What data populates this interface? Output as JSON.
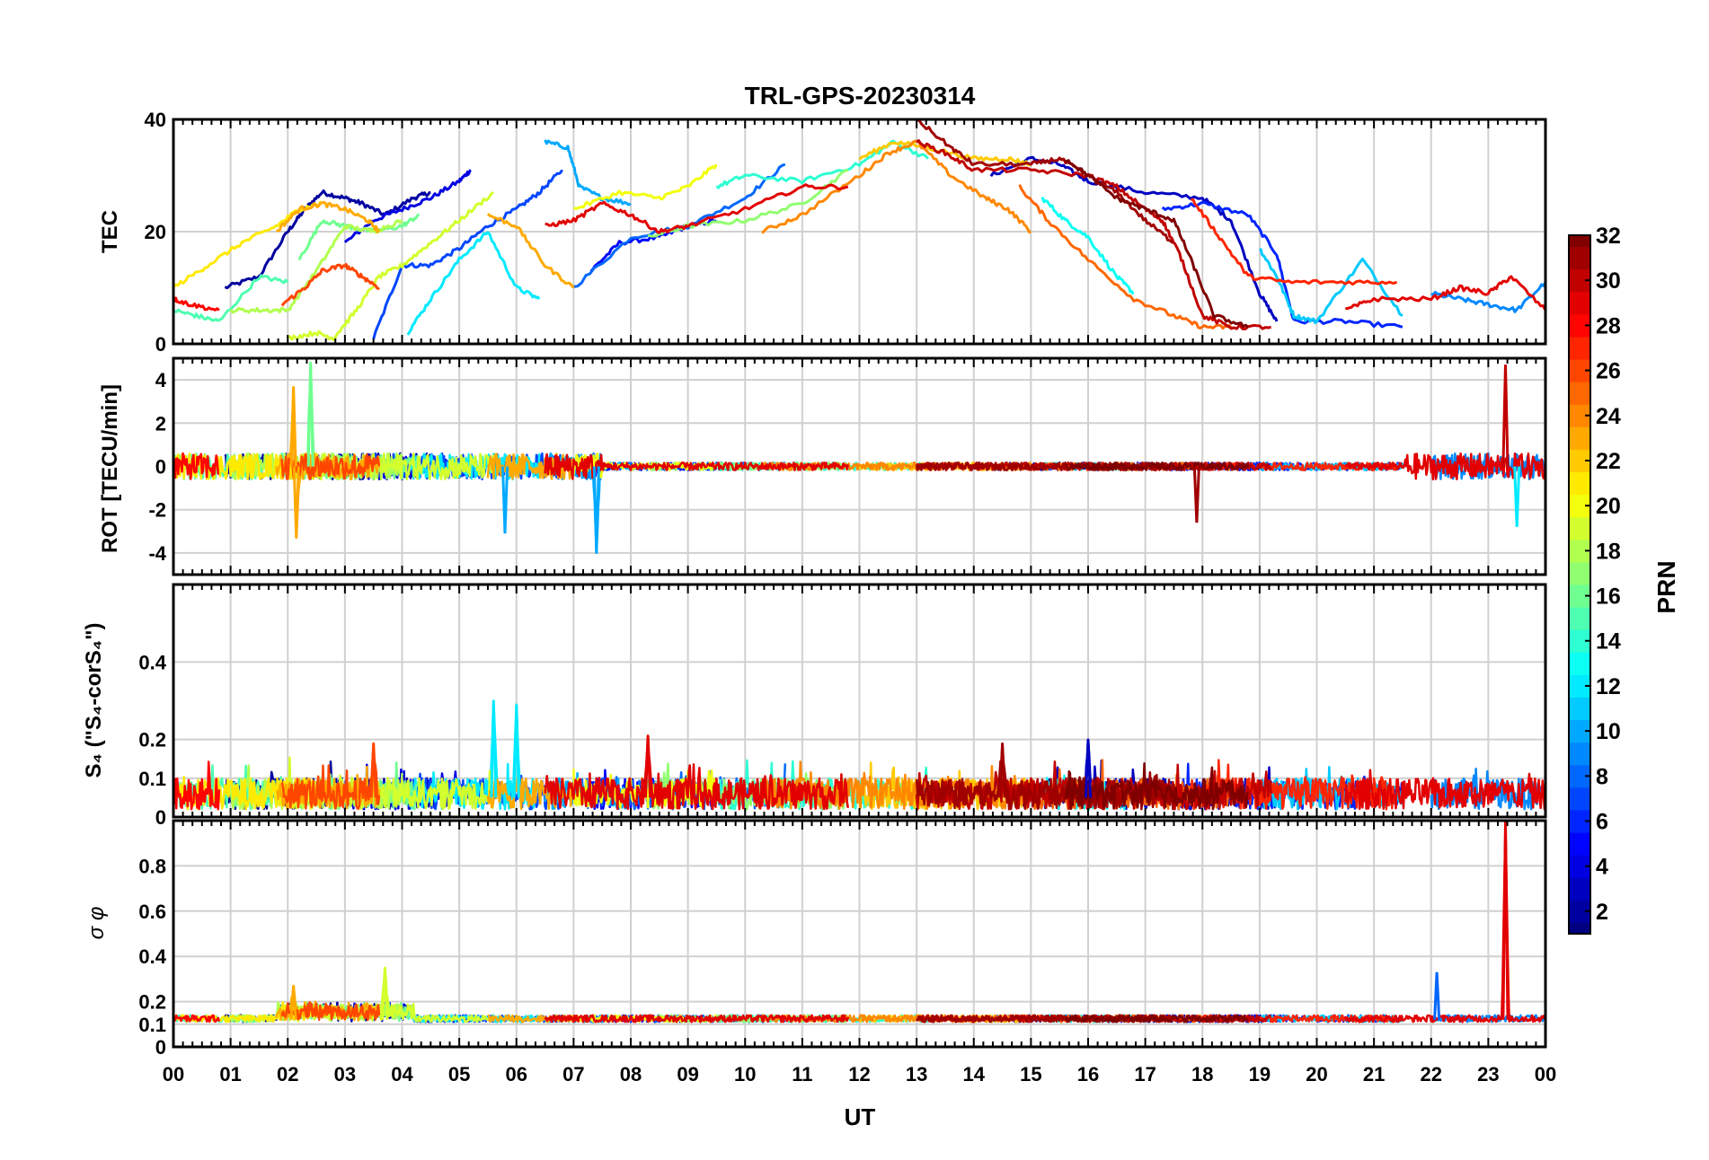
{
  "chart_data": [
    {
      "type": "line",
      "panel": "TEC",
      "title": "TRL-GPS-20230314",
      "ylabel": "TEC",
      "ylim": [
        0,
        40
      ],
      "yticks": [
        0,
        20,
        40
      ],
      "series": [
        {
          "name": "PRN 2",
          "prn": 2,
          "x": [
            0.9,
            1.5,
            2.0,
            2.3,
            2.6,
            3.0,
            3.3,
            3.7,
            4.2,
            4.5
          ],
          "y": [
            10,
            12,
            20,
            24,
            27,
            26,
            25,
            23,
            26,
            27
          ]
        },
        {
          "name": "PRN 4",
          "prn": 4,
          "x": [
            3.0,
            3.5,
            4.0,
            4.5,
            5.0,
            5.2
          ],
          "y": [
            18,
            22,
            24,
            26,
            29,
            31
          ]
        },
        {
          "name": "PRN 5",
          "prn": 5,
          "x": [
            7.3,
            7.8,
            8.5,
            9.0,
            9.5
          ],
          "y": [
            13,
            18,
            19,
            21,
            22
          ]
        },
        {
          "name": "PRN 7",
          "prn": 7,
          "x": [
            3.5,
            4.0,
            4.5,
            5.0,
            5.5,
            6.0,
            6.4,
            6.8
          ],
          "y": [
            1,
            14,
            14,
            17,
            21,
            24,
            27,
            31
          ]
        },
        {
          "name": "PRN 8",
          "prn": 8,
          "x": [
            7.0,
            8.0,
            9.0,
            10.0,
            10.7
          ],
          "y": [
            10,
            19,
            21,
            26,
            32
          ]
        },
        {
          "name": "PRN 3",
          "prn": 3,
          "x": [
            14.3,
            15.0,
            15.5,
            16.0,
            17.0,
            18.0,
            18.5,
            19.0,
            19.3
          ],
          "y": [
            30,
            33,
            32,
            29,
            27,
            26,
            22,
            9,
            4
          ]
        },
        {
          "name": "PRN 6",
          "prn": 6,
          "x": [
            17.3,
            18.0,
            18.8,
            19.3,
            19.6,
            20.5,
            21.5
          ],
          "y": [
            24,
            25,
            23,
            16,
            4,
            4,
            3
          ]
        },
        {
          "name": "PRN 9",
          "prn": 9,
          "x": [
            22.0,
            22.5,
            23.0,
            23.5,
            24.0
          ],
          "y": [
            9,
            8,
            7,
            6,
            11
          ]
        },
        {
          "name": "PRN 10",
          "prn": 10,
          "x": [
            6.5,
            6.9,
            7.1,
            7.5,
            8.0
          ],
          "y": [
            36,
            35,
            28,
            26,
            25
          ]
        },
        {
          "name": "PRN 11",
          "prn": 11,
          "x": [
            19.0,
            19.3,
            19.6,
            20.0,
            20.8,
            21.5
          ],
          "y": [
            17,
            12,
            5,
            4,
            15,
            5
          ]
        },
        {
          "name": "PRN 12",
          "prn": 12,
          "x": [
            4.1,
            4.5,
            5.0,
            5.5,
            6.0,
            6.4
          ],
          "y": [
            2,
            8,
            15,
            20,
            10,
            8
          ]
        },
        {
          "name": "PRN 13",
          "prn": 13,
          "x": [
            15.2,
            15.6,
            16.0,
            16.5,
            16.8
          ],
          "y": [
            26,
            22,
            19,
            12,
            9
          ]
        },
        {
          "name": "PRN 14",
          "prn": 14,
          "x": [
            9.5,
            10.0,
            11.0,
            12.0,
            12.6,
            13.2
          ],
          "y": [
            28,
            30,
            29,
            32,
            36,
            33
          ]
        },
        {
          "name": "PRN 15",
          "prn": 15,
          "x": [
            0.0,
            0.4,
            0.8,
            1.5,
            2.0
          ],
          "y": [
            6,
            5,
            4,
            12,
            11
          ]
        },
        {
          "name": "PRN 16",
          "prn": 16,
          "x": [
            2.2,
            2.6,
            3.0,
            3.5,
            4.0,
            4.3
          ],
          "y": [
            15,
            22,
            21,
            20,
            21,
            23
          ]
        },
        {
          "name": "PRN 17",
          "prn": 17,
          "x": [
            8.3,
            9.0,
            10.0,
            11.0,
            11.8
          ],
          "y": [
            19,
            21,
            22,
            25,
            31
          ]
        },
        {
          "name": "PRN 18",
          "prn": 18,
          "x": [
            1.0,
            1.5,
            2.0,
            2.5,
            3.0,
            3.5,
            4.0
          ],
          "y": [
            6,
            6,
            6,
            13,
            21,
            20,
            22
          ]
        },
        {
          "name": "PRN 19",
          "prn": 19,
          "x": [
            2.0,
            2.5,
            2.8,
            3.2,
            3.6,
            4.0,
            4.5,
            5.0,
            5.6
          ],
          "y": [
            1,
            2,
            1,
            6,
            12,
            14,
            18,
            22,
            27
          ]
        },
        {
          "name": "PRN 20",
          "prn": 20,
          "x": [
            7.0,
            7.8,
            8.5,
            9.0,
            9.5
          ],
          "y": [
            24,
            27,
            26,
            28,
            32
          ]
        },
        {
          "name": "PRN 21",
          "prn": 21,
          "x": [
            0.0,
            0.6,
            1.2,
            1.8,
            2.2,
            2.6
          ],
          "y": [
            10,
            14,
            18,
            21,
            24,
            25
          ]
        },
        {
          "name": "PRN 22",
          "prn": 22,
          "x": [
            12.0,
            12.6,
            13.2,
            14.0,
            14.6,
            15.0
          ],
          "y": [
            33,
            36,
            35,
            33,
            33,
            32
          ]
        },
        {
          "name": "PRN 23",
          "prn": 23,
          "x": [
            1.8,
            2.2,
            2.6,
            3.0,
            3.4,
            3.6
          ],
          "y": [
            20,
            24,
            25,
            24,
            22,
            20
          ]
        },
        {
          "name": "PRN 24",
          "prn": 24,
          "x": [
            10.3,
            11.0,
            12.0,
            12.5,
            13.0,
            13.6,
            14.2,
            14.6,
            15.0
          ],
          "y": [
            20,
            23,
            30,
            34,
            36,
            30,
            26,
            24,
            20
          ]
        },
        {
          "name": "PRN 25",
          "prn": 25,
          "x": [
            14.8,
            15.3,
            16.0,
            16.8,
            17.5,
            18.0,
            18.5
          ],
          "y": [
            28,
            22,
            15,
            8,
            5,
            3,
            3
          ]
        },
        {
          "name": "PRN 26",
          "prn": 26,
          "x": [
            1.9,
            2.3,
            2.6,
            3.0,
            3.3,
            3.6
          ],
          "y": [
            7,
            10,
            13,
            14,
            12,
            10
          ]
        },
        {
          "name": "PRN 23b",
          "prn": 23,
          "x": [
            5.5,
            6.0,
            6.5,
            7.0
          ],
          "y": [
            23,
            21,
            14,
            10
          ]
        },
        {
          "name": "PRN 27",
          "prn": 27,
          "x": [
            17.8,
            18.3,
            18.8,
            19.5,
            20.5,
            21.4
          ],
          "y": [
            26,
            19,
            12,
            11,
            11,
            11
          ]
        },
        {
          "name": "PRN 28",
          "prn": 28,
          "x": [
            0.0,
            0.3,
            0.8
          ],
          "y": [
            8,
            7,
            6
          ]
        },
        {
          "name": "PRN 29",
          "prn": 29,
          "x": [
            6.5,
            7.0,
            7.5,
            8.0,
            8.5,
            9.0,
            10.0,
            11.0,
            11.8
          ],
          "y": [
            21,
            22,
            25,
            23,
            20,
            21,
            24,
            28,
            28
          ]
        },
        {
          "name": "PRN 30",
          "prn": 30,
          "x": [
            13.0,
            13.5,
            14.0,
            15.0,
            16.0,
            16.5,
            17.0,
            17.3,
            17.6,
            18.0,
            18.5,
            19.2
          ],
          "y": [
            36,
            34,
            31,
            31,
            30,
            28,
            24,
            22,
            16,
            5,
            3,
            3
          ]
        },
        {
          "name": "PRN 29b",
          "prn": 29,
          "x": [
            20.5,
            21.0,
            22.0,
            22.5,
            23.0,
            23.4,
            24.0
          ],
          "y": [
            6,
            8,
            8,
            10,
            9,
            12,
            6
          ]
        },
        {
          "name": "PRN 31",
          "prn": 31,
          "x": [
            13.0,
            13.6,
            14.0,
            15.0,
            15.5,
            16.0,
            16.5,
            17.0,
            17.5
          ],
          "y": [
            40,
            35,
            32,
            32,
            33,
            30,
            27,
            22,
            18
          ]
        },
        {
          "name": "PRN 32",
          "prn": 32,
          "x": [
            15.6,
            16.0,
            16.5,
            17.0,
            17.5,
            17.8,
            18.2,
            18.8
          ],
          "y": [
            33,
            30,
            26,
            24,
            22,
            15,
            5,
            3
          ]
        }
      ]
    },
    {
      "type": "line",
      "panel": "ROT",
      "ylabel": "ROT [TECU/min]",
      "ylim": [
        -5,
        5
      ],
      "yticks": [
        -4,
        -2,
        0,
        2,
        4
      ],
      "notable_peaks": [
        {
          "prn": 23,
          "x": 2.1,
          "y": 3.7
        },
        {
          "prn": 23,
          "x": 2.15,
          "y": -3.3
        },
        {
          "prn": 16,
          "x": 2.4,
          "y": 4.8
        },
        {
          "prn": 10,
          "x": 5.8,
          "y": -3.1
        },
        {
          "prn": 10,
          "x": 7.4,
          "y": -4.0
        },
        {
          "prn": 31,
          "x": 17.9,
          "y": -2.6
        },
        {
          "prn": 30,
          "x": 23.3,
          "y": 4.7
        },
        {
          "prn": 12,
          "x": 23.5,
          "y": -2.8
        }
      ]
    },
    {
      "type": "line",
      "panel": "S4",
      "ylabel": "S₄ (\"S₄-corS₄\")",
      "ylim": [
        0,
        0.6
      ],
      "yticks": [
        0,
        0.1,
        0.2,
        0.4
      ],
      "notable_peaks": [
        {
          "prn": 12,
          "x": 5.6,
          "y": 0.3
        },
        {
          "prn": 12,
          "x": 6.0,
          "y": 0.29
        },
        {
          "prn": 26,
          "x": 3.5,
          "y": 0.19
        },
        {
          "prn": 29,
          "x": 8.3,
          "y": 0.21
        },
        {
          "prn": 31,
          "x": 14.5,
          "y": 0.19
        },
        {
          "prn": 3,
          "x": 16.0,
          "y": 0.2
        }
      ]
    },
    {
      "type": "line",
      "panel": "sigma_phi",
      "ylabel": "σ φ",
      "ylim": [
        0,
        1
      ],
      "yticks": [
        0,
        0.1,
        0.2,
        0.4,
        0.6,
        0.8
      ],
      "notable_peaks": [
        {
          "prn": 19,
          "x": 3.7,
          "y": 0.35
        },
        {
          "prn": 23,
          "x": 2.1,
          "y": 0.27
        },
        {
          "prn": 8,
          "x": 22.1,
          "y": 0.33
        },
        {
          "prn": 29,
          "x": 23.3,
          "y": 1.0
        }
      ]
    }
  ],
  "xaxis": {
    "label": "UT",
    "ticks": [
      "00",
      "01",
      "02",
      "03",
      "04",
      "05",
      "06",
      "07",
      "08",
      "09",
      "10",
      "11",
      "12",
      "13",
      "14",
      "15",
      "16",
      "17",
      "18",
      "19",
      "20",
      "21",
      "22",
      "23",
      "00"
    ]
  },
  "colorbar": {
    "label": "PRN",
    "min": 1,
    "max": 32,
    "ticks": [
      "2",
      "4",
      "6",
      "8",
      "10",
      "12",
      "14",
      "16",
      "18",
      "20",
      "22",
      "24",
      "26",
      "28",
      "30",
      "32"
    ]
  }
}
